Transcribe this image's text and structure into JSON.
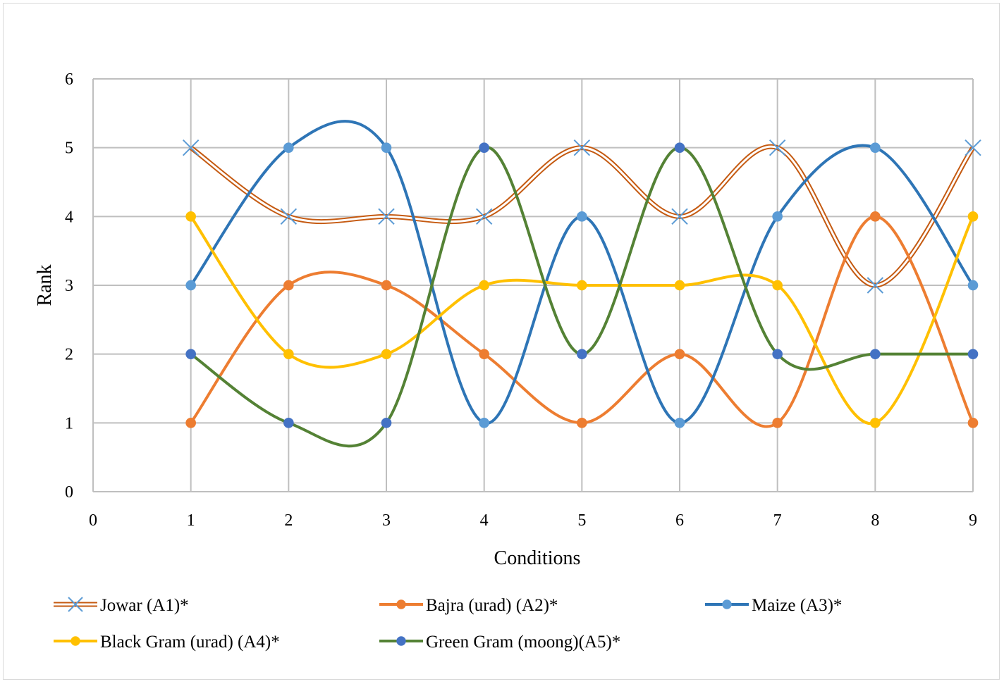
{
  "chart_data": {
    "type": "line",
    "smooth": true,
    "xlabel": "Conditions",
    "ylabel": "Rank",
    "xlim": [
      0,
      9
    ],
    "ylim": [
      0,
      6
    ],
    "xticks": [
      "0",
      "1",
      "2",
      "3",
      "4",
      "5",
      "6",
      "7",
      "8",
      "9"
    ],
    "yticks": [
      "0",
      "1",
      "2",
      "3",
      "4",
      "5",
      "6"
    ],
    "grid": true,
    "legend_position": "bottom",
    "x": [
      1,
      2,
      3,
      4,
      5,
      6,
      7,
      8,
      9
    ],
    "series": [
      {
        "name": "Jowar (A1)*",
        "values": [
          5,
          4,
          4,
          4,
          5,
          4,
          5,
          3,
          5
        ],
        "color": "#c55a11",
        "style": "double",
        "marker": "x",
        "marker_color": "#5b9bd5"
      },
      {
        "name": "Bajra (urad) (A2)*",
        "values": [
          1,
          3,
          3,
          2,
          1,
          2,
          1,
          4,
          1
        ],
        "color": "#ed7d31",
        "style": "solid",
        "marker": "circle",
        "marker_color": "#ed7d31"
      },
      {
        "name": "Maize (A3)*",
        "values": [
          3,
          5,
          5,
          1,
          4,
          1,
          4,
          5,
          3
        ],
        "color": "#2e75b6",
        "style": "solid",
        "marker": "circle",
        "marker_color": "#5b9bd5"
      },
      {
        "name": "Black Gram (urad) (A4)*",
        "values": [
          4,
          2,
          2,
          3,
          3,
          3,
          3,
          1,
          4
        ],
        "color": "#ffc000",
        "style": "solid",
        "marker": "circle",
        "marker_color": "#ffc000"
      },
      {
        "name": "Green Gram (moong)(A5)*",
        "values": [
          2,
          1,
          1,
          5,
          2,
          5,
          2,
          2,
          2
        ],
        "color": "#548235",
        "style": "solid",
        "marker": "circle",
        "marker_color": "#4472c4"
      }
    ]
  }
}
